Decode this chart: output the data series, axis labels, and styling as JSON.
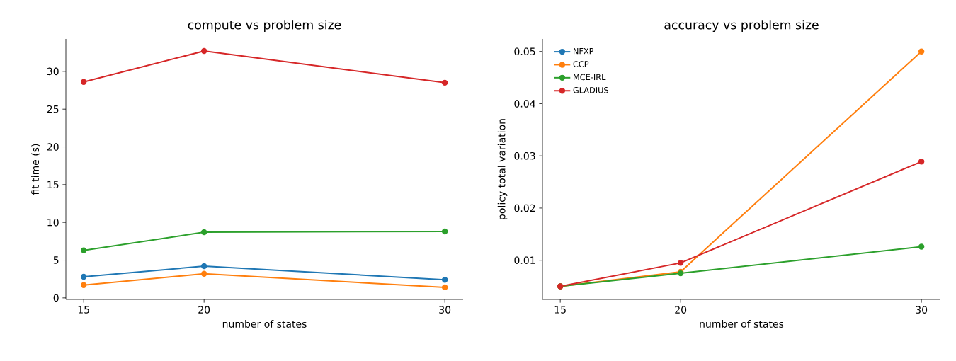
{
  "chart_data": [
    {
      "type": "line",
      "title": "compute vs problem size",
      "xlabel": "number of states",
      "ylabel": "fit time (s)",
      "x": [
        15,
        20,
        30
      ],
      "xlim": [
        14.26,
        30.76
      ],
      "xticks": [
        15,
        20,
        30
      ],
      "ylim": [
        -0.2,
        34.3
      ],
      "yticks": [
        0,
        5,
        10,
        15,
        20,
        25,
        30
      ],
      "marker": "circle",
      "line_style": "solid",
      "series": [
        {
          "color": "#1f77b4",
          "values": [
            2.8,
            4.2,
            2.4
          ]
        },
        {
          "color": "#ff7f0e",
          "values": [
            1.7,
            3.2,
            1.4
          ]
        },
        {
          "color": "#2ca02c",
          "values": [
            6.3,
            8.7,
            8.8
          ]
        },
        {
          "color": "#d62728",
          "values": [
            28.6,
            32.7,
            28.5
          ]
        }
      ]
    },
    {
      "type": "line",
      "title": "accuracy vs problem size",
      "xlabel": "number of states",
      "ylabel": "policy total variation",
      "x": [
        15,
        20,
        30
      ],
      "xlim": [
        14.26,
        30.79
      ],
      "xticks": [
        15,
        20,
        30
      ],
      "ylim": [
        0.0025,
        0.0524
      ],
      "yticks": [
        0.01,
        0.02,
        0.03,
        0.04,
        0.05
      ],
      "marker": "circle",
      "line_style": "solid",
      "legend": "top left",
      "series": [
        {
          "name": "NFXP",
          "color": "#1f77b4",
          "values": [
            null,
            null,
            null
          ]
        },
        {
          "name": "CCP",
          "color": "#ff7f0e",
          "values": [
            0.005,
            0.0078,
            0.05
          ]
        },
        {
          "name": "MCE-IRL",
          "color": "#2ca02c",
          "values": [
            0.005,
            0.0075,
            0.0126
          ]
        },
        {
          "name": "GLADIUS",
          "color": "#d62728",
          "values": [
            0.005,
            0.0095,
            0.0289
          ]
        }
      ]
    }
  ]
}
